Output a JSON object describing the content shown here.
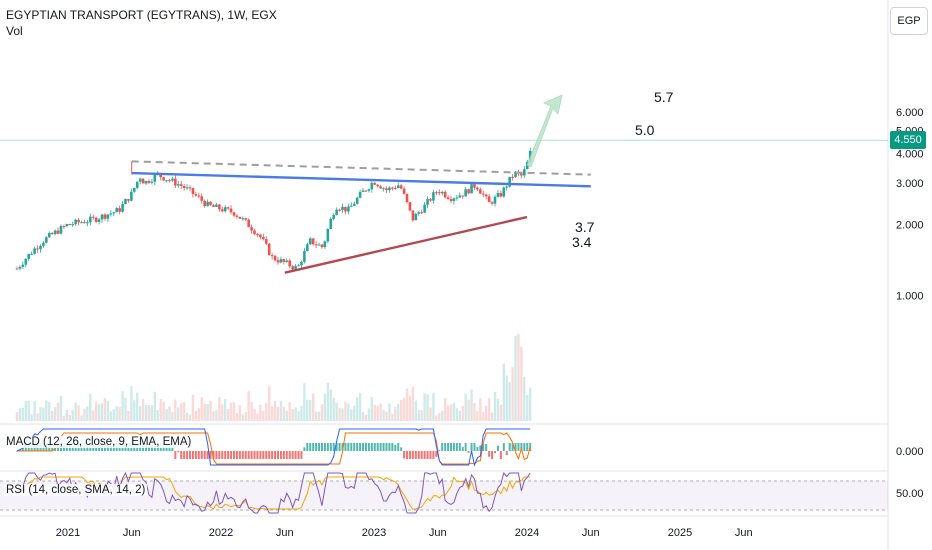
{
  "header": {
    "title": "EGYPTIAN TRANSPORT (EGYTRANS), 1W, EGX",
    "volume_label": "Vol"
  },
  "currency_button": "EGP",
  "last_price_badge": "4.550",
  "indicators": {
    "macd_label": "MACD (12, 26, close, 9, EMA, EMA)",
    "rsi_label": "RSI (14, close, SMA, 14, 2)"
  },
  "colors": {
    "up": "#26a69a",
    "down": "#ef5350",
    "resistance": "#9e9e9e",
    "trendline": "#4a7be6",
    "support": "#b5474f",
    "macd": "#2962ff",
    "signal": "#ff6d00",
    "rsi": "#7e57c2",
    "rsi_ma": "#f7a600"
  },
  "chart_data": {
    "type": "candlestick",
    "title": "EGYPTIAN TRANSPORT (EGYTRANS), 1W, EGX",
    "price_axis": {
      "ticks": [
        "1.000",
        "2.000",
        "3.000",
        "4.000",
        "5.000",
        "6.000"
      ],
      "ylim": [
        0.55,
        6.6
      ]
    },
    "macd_axis": {
      "ticks": [
        "0.000"
      ]
    },
    "rsi_axis": {
      "ticks": [
        "50.00"
      ]
    },
    "time_axis": {
      "ticks": [
        "2021",
        "Jun",
        "2022",
        "Jun",
        "2023",
        "Jun",
        "2024",
        "Jun",
        "2025",
        "Jun"
      ]
    },
    "price_path": [
      {
        "t": "2020-09",
        "p": 1.3
      },
      {
        "t": "2020-11",
        "p": 1.7
      },
      {
        "t": "2021-01",
        "p": 2.0
      },
      {
        "t": "2021-03",
        "p": 2.1
      },
      {
        "t": "2021-05",
        "p": 2.3
      },
      {
        "t": "2021-06",
        "p": 2.7
      },
      {
        "t": "2021-06-20",
        "p": 3.2
      },
      {
        "t": "2021-07",
        "p": 3.0
      },
      {
        "t": "2021-08",
        "p": 3.25
      },
      {
        "t": "2021-10",
        "p": 2.9
      },
      {
        "t": "2021-12",
        "p": 2.4
      },
      {
        "t": "2022-02",
        "p": 2.25
      },
      {
        "t": "2022-04",
        "p": 1.8
      },
      {
        "t": "2022-05",
        "p": 1.45
      },
      {
        "t": "2022-07",
        "p": 1.3
      },
      {
        "t": "2022-08",
        "p": 1.7
      },
      {
        "t": "2022-09",
        "p": 1.6
      },
      {
        "t": "2022-10",
        "p": 2.4
      },
      {
        "t": "2022-11",
        "p": 2.3
      },
      {
        "t": "2022-12",
        "p": 2.7
      },
      {
        "t": "2023-01",
        "p": 3.05
      },
      {
        "t": "2023-02",
        "p": 2.8
      },
      {
        "t": "2023-03",
        "p": 2.95
      },
      {
        "t": "2023-04",
        "p": 2.1
      },
      {
        "t": "2023-05",
        "p": 2.4
      },
      {
        "t": "2023-06",
        "p": 2.8
      },
      {
        "t": "2023-07",
        "p": 2.6
      },
      {
        "t": "2023-08",
        "p": 2.7
      },
      {
        "t": "2023-09",
        "p": 2.95
      },
      {
        "t": "2023-10",
        "p": 2.45
      },
      {
        "t": "2023-11",
        "p": 2.7
      },
      {
        "t": "2023-12",
        "p": 3.3
      },
      {
        "t": "2023-12-20",
        "p": 3.2
      },
      {
        "t": "2024-01",
        "p": 3.6
      },
      {
        "t": "2024-01-10",
        "p": 4.1
      },
      {
        "t": "2024-01-15",
        "p": 4.55
      }
    ],
    "last_price": 4.55,
    "annotations": [
      "3.4",
      "3.7",
      "5.0",
      "5.7"
    ],
    "trendlines": [
      {
        "name": "resistance",
        "from": {
          "t": "2021-06",
          "p": 3.3
        },
        "to": {
          "t": "2024-06",
          "p": 2.9
        }
      },
      {
        "name": "dashed",
        "from": {
          "t": "2021-06",
          "p": 3.7
        },
        "to": {
          "t": "2024-06",
          "p": 3.25
        }
      },
      {
        "name": "support",
        "from": {
          "t": "2022-06",
          "p": 1.25
        },
        "to": {
          "t": "2024-01",
          "p": 2.15
        }
      }
    ]
  }
}
